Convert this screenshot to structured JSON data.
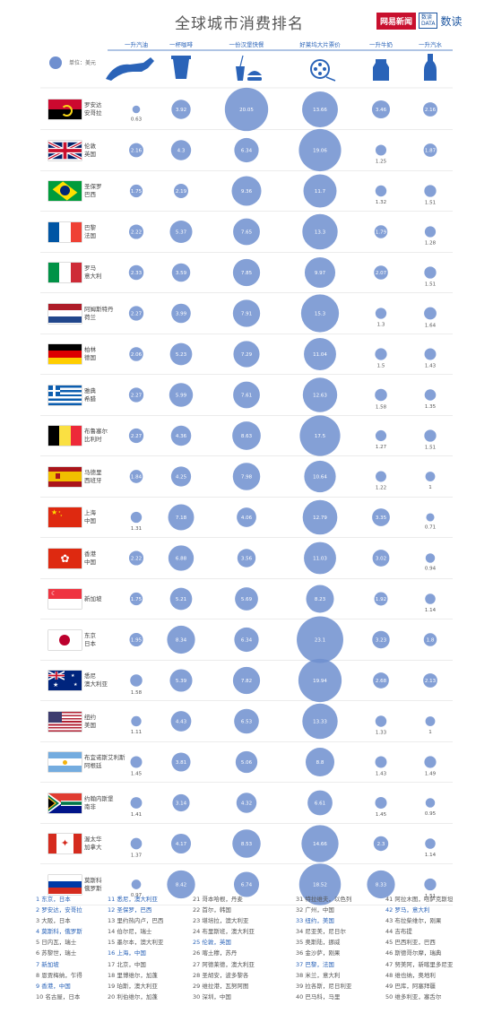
{
  "page": {
    "title": "全球城市消费排名",
    "brand": "网易新闻",
    "brand_sub": "数读",
    "unit": "单位：美元"
  },
  "chart_data": {
    "type": "bubble-grid",
    "title": "全球城市消费排名",
    "columns": [
      "一升汽油",
      "一杯咖啡",
      "一份汉堡快餐",
      "好莱坞大片票价",
      "一升牛奶",
      "一升汽水"
    ],
    "rows": [
      {
        "city": "罗安达",
        "country": "安哥拉",
        "flag": "angola",
        "values": [
          0.63,
          3.92,
          20.05,
          13.66,
          3.46,
          2.16
        ]
      },
      {
        "city": "伦敦",
        "country": "英国",
        "flag": "uk",
        "values": [
          2.16,
          4.3,
          6.34,
          19.06,
          1.25,
          1.87
        ]
      },
      {
        "city": "圣保罗",
        "country": "巴西",
        "flag": "brazil",
        "values": [
          1.75,
          2.19,
          9.36,
          11.7,
          1.32,
          1.51
        ]
      },
      {
        "city": "巴黎",
        "country": "法国",
        "flag": "france",
        "values": [
          2.22,
          5.37,
          7.65,
          13.3,
          1.79,
          1.28
        ]
      },
      {
        "city": "罗马",
        "country": "意大利",
        "flag": "italy",
        "values": [
          2.33,
          3.59,
          7.85,
          9.97,
          2.07,
          1.51
        ]
      },
      {
        "city": "阿姆斯特丹",
        "country": "荷兰",
        "flag": "netherlands",
        "values": [
          2.27,
          3.99,
          7.91,
          15.3,
          1.3,
          1.64
        ]
      },
      {
        "city": "柏林",
        "country": "德国",
        "flag": "germany",
        "values": [
          2.06,
          5.23,
          7.29,
          11.04,
          1.5,
          1.43
        ]
      },
      {
        "city": "雅典",
        "country": "希腊",
        "flag": "greece",
        "values": [
          2.27,
          5.99,
          7.61,
          12.63,
          1.58,
          1.35
        ]
      },
      {
        "city": "布鲁塞尔",
        "country": "比利时",
        "flag": "belgium",
        "values": [
          2.27,
          4.36,
          8.63,
          17.5,
          1.27,
          1.51
        ]
      },
      {
        "city": "马德里",
        "country": "西班牙",
        "flag": "spain",
        "values": [
          1.84,
          4.25,
          7.98,
          10.64,
          1.22,
          1
        ]
      },
      {
        "city": "上海",
        "country": "中国",
        "flag": "china",
        "values": [
          1.31,
          7.18,
          4.06,
          12.79,
          3.35,
          0.71
        ]
      },
      {
        "city": "香港",
        "country": "中国",
        "flag": "hongkong",
        "values": [
          2.22,
          6.88,
          3.56,
          11.03,
          3.02,
          0.94
        ]
      },
      {
        "city": "新加坡",
        "country": "",
        "flag": "singapore",
        "values": [
          1.75,
          5.21,
          5.69,
          8.23,
          1.92,
          1.14
        ]
      },
      {
        "city": "东京",
        "country": "日本",
        "flag": "japan",
        "values": [
          1.95,
          8.34,
          6.34,
          23.1,
          3.23,
          1.8
        ]
      },
      {
        "city": "悉尼",
        "country": "澳大利亚",
        "flag": "australia",
        "values": [
          1.58,
          5.39,
          7.82,
          19.94,
          2.68,
          2.13
        ]
      },
      {
        "city": "纽约",
        "country": "美国",
        "flag": "usa",
        "values": [
          1.11,
          4.43,
          6.53,
          13.33,
          1.33,
          1
        ]
      },
      {
        "city": "布宜诺斯艾利斯",
        "country": "阿根廷",
        "flag": "argentina",
        "values": [
          1.45,
          3.81,
          5.06,
          8.8,
          1.43,
          1.49
        ]
      },
      {
        "city": "约翰内斯堡",
        "country": "南非",
        "flag": "southafrica",
        "values": [
          1.41,
          3.14,
          4.32,
          6.61,
          1.45,
          0.95
        ]
      },
      {
        "city": "渥太华",
        "country": "加拿大",
        "flag": "canada",
        "values": [
          1.37,
          4.17,
          8.53,
          14.66,
          2.3,
          1.14
        ]
      },
      {
        "city": "莫斯科",
        "country": "俄罗斯",
        "flag": "russia",
        "values": [
          0.97,
          8.42,
          6.74,
          18.52,
          8.33,
          1.51
        ]
      }
    ]
  },
  "ranking": [
    [
      "1 东京，日本",
      "2 罗安达，安哥拉",
      "3 大阪，日本",
      "4 莫斯科，俄罗斯",
      "5 日内瓦，瑞士",
      "6 苏黎世，瑞士",
      "7 新加坡",
      "8 恩贾梅纳，乍得",
      "9 香港，中国",
      "10 名古屋，日本"
    ],
    [
      "11 悉尼，澳大利亚",
      "12 圣保罗，巴西",
      "13 里约热内卢，巴西",
      "14 伯尔尼，瑞士",
      "15 墨尔本，澳大利亚",
      "16 上海，中国",
      "17 北京，中国",
      "18 里博维尔，加蓬",
      "19 珀斯，澳大利亚",
      "20 利伯维尔，加蓬"
    ],
    [
      "21 哥本哈根，丹麦",
      "22 首尔，韩国",
      "23 堪培拉，澳大利亚",
      "24 布里斯班，澳大利亚",
      "25 伦敦，英国",
      "26 喀土穆，苏丹",
      "27 阿德莱德，澳大利亚",
      "28 圣胡安，波多黎各",
      "29 维拉港，瓦努阿图",
      "30 深圳，中国"
    ],
    [
      "31 特拉维夫，以色列",
      "32 广州，中国",
      "33 纽约，美国",
      "34 尼亚美，尼日尔",
      "35 奥斯陆，挪威",
      "36 金沙萨，刚果",
      "37 巴黎，法国",
      "38 米兰，意大利",
      "39 拉各斯，尼日利亚",
      "40 巴马科，马里"
    ],
    [
      "41 阿拉木图，哈萨克斯坦",
      "42 罗马，意大利",
      "43 布拉柴维尔，刚果",
      "44 吉布提",
      "45 巴西利亚，巴西",
      "46 斯德哥尔摩，瑞典",
      "47 努美阿，新喀里多尼亚",
      "48 维也纳，奥地利",
      "49 巴库，阿塞拜疆",
      "50 维多利亚，塞舌尔"
    ]
  ],
  "ranking_highlight": [
    "1 东京，日本",
    "2 罗安达，安哥拉",
    "4 莫斯科，俄罗斯",
    "7 新加坡",
    "9 香港，中国",
    "11 悉尼，澳大利亚",
    "12 圣保罗，巴西",
    "16 上海，中国",
    "25 伦敦，英国",
    "33 纽约，美国",
    "37 巴黎，法国",
    "42 罗马，意大利"
  ],
  "colors": {
    "bubble": "#6f8fcf",
    "grid": "#d8d8d8",
    "header": "#2a63b8",
    "highlight": "#2a63b8"
  }
}
